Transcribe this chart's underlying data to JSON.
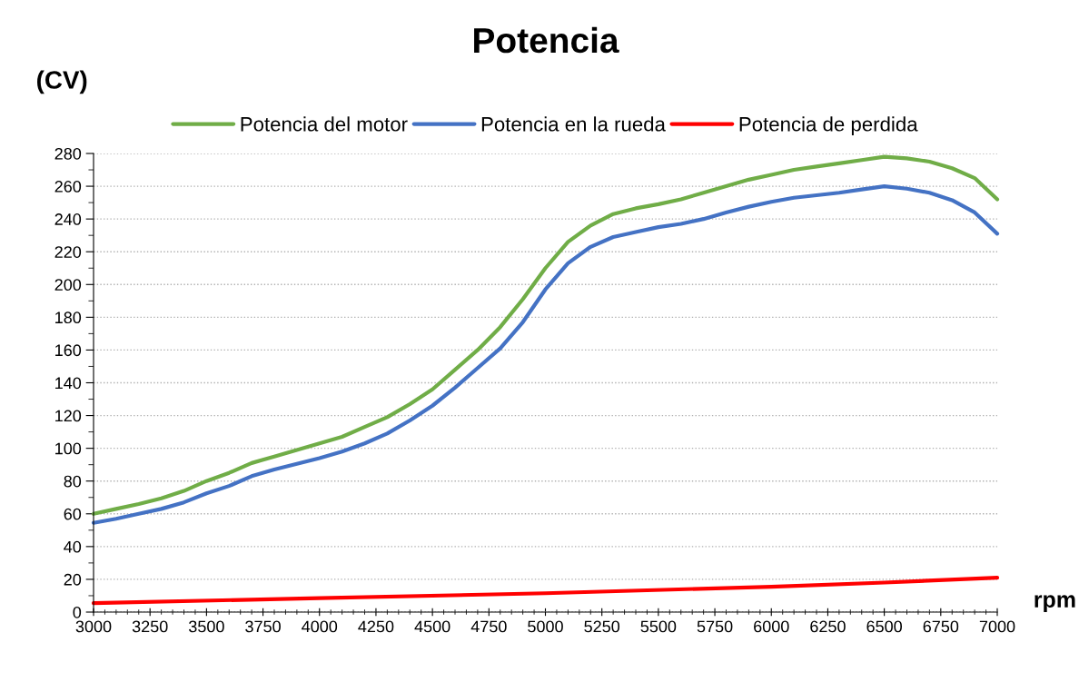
{
  "chart_data": {
    "type": "line",
    "title": "Potencia",
    "xlabel": "rpm",
    "ylabel": "(CV)",
    "x": [
      3000,
      3100,
      3200,
      3300,
      3400,
      3500,
      3600,
      3700,
      3800,
      3900,
      4000,
      4100,
      4200,
      4300,
      4400,
      4500,
      4600,
      4700,
      4800,
      4900,
      5000,
      5100,
      5200,
      5300,
      5400,
      5500,
      5600,
      5700,
      5800,
      5900,
      6000,
      6100,
      6200,
      6300,
      6400,
      6500,
      6600,
      6700,
      6800,
      6900,
      7000
    ],
    "series": [
      {
        "name": "Potencia del motor",
        "color": "#70ad47",
        "values": [
          60,
          63,
          66,
          69.5,
          74,
          80,
          85,
          91,
          95,
          99,
          103,
          107,
          113,
          119,
          127,
          136,
          148,
          160,
          174,
          191,
          210,
          226,
          236,
          243,
          246.5,
          249,
          252,
          256,
          260,
          264,
          267,
          270,
          272,
          274,
          276,
          278,
          277,
          275,
          271,
          265,
          252
        ]
      },
      {
        "name": "Potencia en la rueda",
        "color": "#4472c4",
        "values": [
          54.5,
          57,
          60,
          63,
          67,
          72.5,
          77,
          83,
          87,
          90.5,
          94,
          98,
          103,
          109,
          117,
          126,
          137,
          149,
          161,
          177,
          197,
          213,
          223,
          229,
          232,
          235,
          237,
          240,
          244,
          247.5,
          250.5,
          253,
          254.5,
          256,
          258,
          260,
          258.5,
          256,
          251.5,
          244,
          231
        ]
      },
      {
        "name": "Potencia de perdida",
        "color": "#ff0000",
        "x": [
          3000,
          4000,
          5000,
          6000,
          6500,
          7000
        ],
        "values": [
          5.5,
          8.5,
          11.5,
          15.5,
          18,
          21
        ]
      }
    ],
    "xlim": [
      3000,
      7000
    ],
    "xticks": [
      3000,
      3250,
      3500,
      3750,
      4000,
      4250,
      4500,
      4750,
      5000,
      5250,
      5500,
      5750,
      6000,
      6250,
      6500,
      6750,
      7000
    ],
    "ylim": [
      0,
      280
    ],
    "yticks": [
      0,
      20,
      40,
      60,
      80,
      100,
      120,
      140,
      160,
      180,
      200,
      220,
      240,
      260,
      280
    ],
    "grid": "y",
    "legend": "top",
    "marker": "none",
    "line_style": "solid"
  }
}
